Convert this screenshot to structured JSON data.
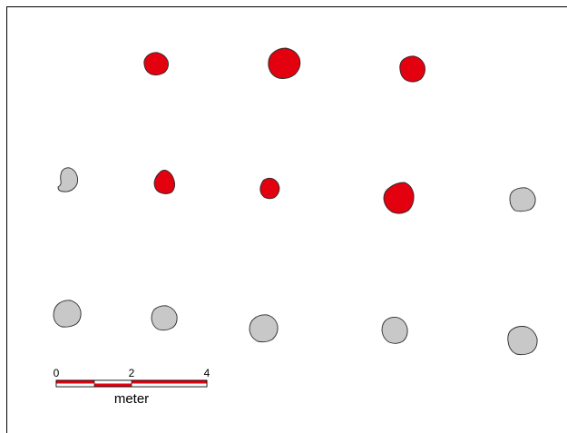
{
  "map": {
    "colors": {
      "red_fill": "#e3000f",
      "gray_fill": "#c8c8c8",
      "outline": "#2b2b2b",
      "background": "#ffffff"
    },
    "features": [
      {
        "row": 1,
        "col": 2,
        "category": "red"
      },
      {
        "row": 1,
        "col": 3,
        "category": "red"
      },
      {
        "row": 1,
        "col": 4,
        "category": "red"
      },
      {
        "row": 2,
        "col": 1,
        "category": "gray"
      },
      {
        "row": 2,
        "col": 2,
        "category": "red"
      },
      {
        "row": 2,
        "col": 3,
        "category": "red"
      },
      {
        "row": 2,
        "col": 4,
        "category": "red"
      },
      {
        "row": 2,
        "col": 5,
        "category": "gray"
      },
      {
        "row": 3,
        "col": 1,
        "category": "gray"
      },
      {
        "row": 3,
        "col": 2,
        "category": "gray"
      },
      {
        "row": 3,
        "col": 3,
        "category": "gray"
      },
      {
        "row": 3,
        "col": 4,
        "category": "gray"
      },
      {
        "row": 3,
        "col": 5,
        "category": "gray"
      }
    ]
  },
  "scale_bar": {
    "labels": [
      "0",
      "2",
      "4"
    ],
    "unit": "meter",
    "max_value": 4
  }
}
